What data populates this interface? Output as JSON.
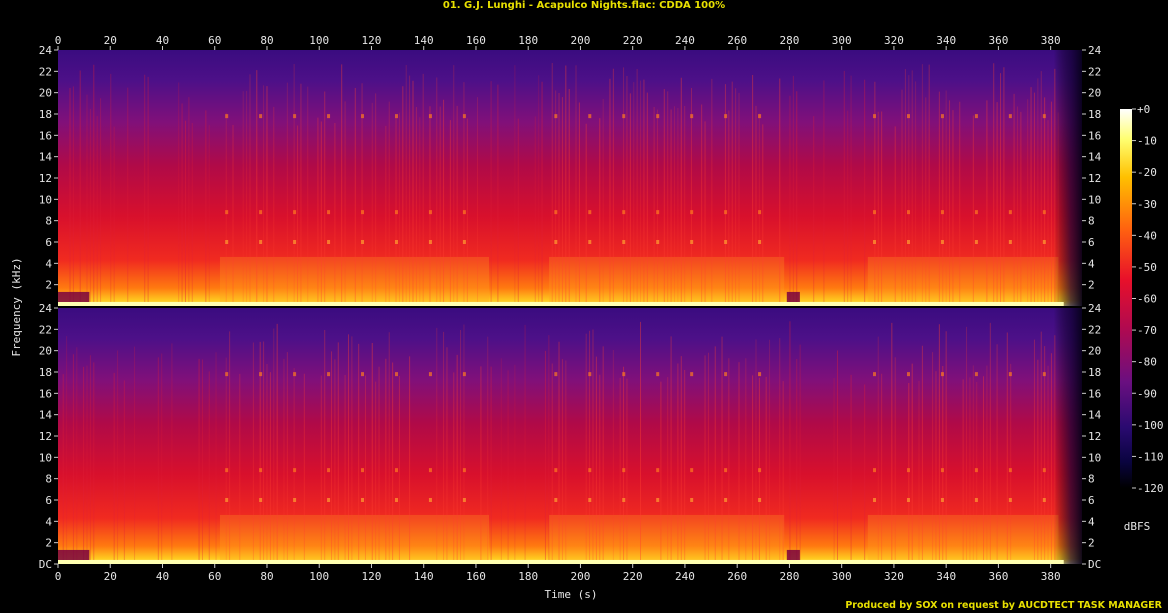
{
  "header": {
    "title": "01. G.J. Lunghi - Acapulco Nights.flac: CDDA 100%"
  },
  "footer": {
    "credit": "Produced by SOX on request by AUCDTECT TASK MANAGER"
  },
  "colors": {
    "title_text": "#e8e000",
    "axis_text": "#e6e6e6",
    "background": "#000000",
    "spectrum_low": "#000033",
    "spectrum_mid": "#e0102a",
    "spectrum_high": "#ffffe0"
  },
  "chart_data": {
    "type": "heatmap",
    "subtype": "spectrogram",
    "channels": 2,
    "xlabel": "Time (s)",
    "ylabel": "Frequency (kHz)",
    "x_ticks": [
      0,
      20,
      40,
      60,
      80,
      100,
      120,
      140,
      160,
      180,
      200,
      220,
      240,
      260,
      280,
      300,
      320,
      340,
      360,
      380
    ],
    "xlim": [
      0,
      392
    ],
    "y_ticks": [
      {
        "value": 0,
        "label": "DC"
      },
      {
        "value": 2,
        "label": "2"
      },
      {
        "value": 4,
        "label": "4"
      },
      {
        "value": 6,
        "label": "6"
      },
      {
        "value": 8,
        "label": "8"
      },
      {
        "value": 10,
        "label": "10"
      },
      {
        "value": 12,
        "label": "12"
      },
      {
        "value": 14,
        "label": "14"
      },
      {
        "value": 16,
        "label": "16"
      },
      {
        "value": 18,
        "label": "18"
      },
      {
        "value": 20,
        "label": "20"
      },
      {
        "value": 22,
        "label": "22"
      },
      {
        "value": 24,
        "label": "24"
      }
    ],
    "ylim": [
      0,
      24
    ],
    "colorbar": {
      "label": "dBFS",
      "ticks": [
        "+0",
        "-10",
        "-20",
        "-30",
        "-40",
        "-50",
        "-60",
        "-70",
        "-80",
        "-90",
        "-100",
        "-110",
        "-120"
      ],
      "range": [
        -120,
        0
      ]
    },
    "quiet_segments_s": [
      [
        0,
        12
      ],
      [
        279,
        284
      ],
      [
        385,
        392
      ]
    ],
    "loud_segments_s": [
      [
        62,
        165
      ],
      [
        188,
        278
      ],
      [
        310,
        383
      ]
    ],
    "grid": false,
    "legend": "colorbar-right"
  }
}
